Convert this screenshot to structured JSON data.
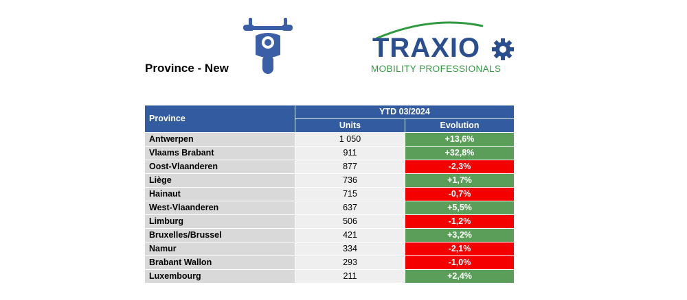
{
  "page": {
    "title": "Province - New"
  },
  "logo": {
    "name": "TRAXIO",
    "tagline": "MOBILITY PROFESSIONALS",
    "icon": "gear-icon"
  },
  "header_icon": "motorcycle-icon",
  "colors": {
    "header_blue": "#335ba0",
    "positive_green": "#5a9e5a",
    "negative_red": "#f40000",
    "label_gray": "#d9d9d9"
  },
  "table": {
    "col_province": "Province",
    "col_period": "YTD 03/2024",
    "col_units": "Units",
    "col_evolution": "Evolution",
    "rows": [
      {
        "province": "Antwerpen",
        "units": "1 050",
        "evolution": "+13,6%",
        "trend": "positive"
      },
      {
        "province": "Vlaams Brabant",
        "units": "911",
        "evolution": "+32,8%",
        "trend": "positive"
      },
      {
        "province": "Oost-Vlaanderen",
        "units": "877",
        "evolution": "-2,3%",
        "trend": "negative"
      },
      {
        "province": "Liège",
        "units": "736",
        "evolution": "+1,7%",
        "trend": "positive"
      },
      {
        "province": "Hainaut",
        "units": "715",
        "evolution": "-0,7%",
        "trend": "negative"
      },
      {
        "province": "West-Vlaanderen",
        "units": "637",
        "evolution": "+5,5%",
        "trend": "positive"
      },
      {
        "province": "Limburg",
        "units": "506",
        "evolution": "-1,2%",
        "trend": "negative"
      },
      {
        "province": "Bruxelles/Brussel",
        "units": "421",
        "evolution": "+3,2%",
        "trend": "positive"
      },
      {
        "province": "Namur",
        "units": "334",
        "evolution": "-2,1%",
        "trend": "negative"
      },
      {
        "province": "Brabant Wallon",
        "units": "293",
        "evolution": "-1,0%",
        "trend": "negative"
      },
      {
        "province": "Luxembourg",
        "units": "211",
        "evolution": "+2,4%",
        "trend": "positive"
      }
    ]
  }
}
